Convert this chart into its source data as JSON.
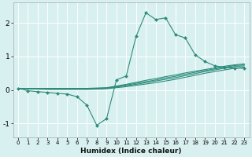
{
  "title": "",
  "xlabel": "Humidex (Indice chaleur)",
  "bg_color": "#d9f0f0",
  "grid_color": "#ffffff",
  "line_color": "#2d8b7a",
  "xlim": [
    -0.5,
    23.5
  ],
  "ylim": [
    -1.4,
    2.6
  ],
  "yticks": [
    -1,
    0,
    1,
    2
  ],
  "xticks": [
    0,
    1,
    2,
    3,
    4,
    5,
    6,
    7,
    8,
    9,
    10,
    11,
    12,
    13,
    14,
    15,
    16,
    17,
    18,
    19,
    20,
    21,
    22,
    23
  ],
  "lines": [
    {
      "x": [
        0,
        1,
        2,
        3,
        4,
        5,
        6,
        7,
        8,
        9,
        10,
        11,
        12,
        13,
        14,
        15,
        16,
        17,
        18,
        19,
        20,
        21,
        22,
        23
      ],
      "y": [
        0.05,
        -0.02,
        -0.05,
        -0.07,
        -0.1,
        -0.12,
        -0.2,
        -0.45,
        -1.05,
        -0.85,
        0.3,
        0.42,
        1.6,
        2.3,
        2.1,
        2.15,
        1.65,
        1.55,
        1.05,
        0.85,
        0.72,
        0.68,
        0.65,
        0.65
      ],
      "marker": "D",
      "markersize": 2.0
    },
    {
      "x": [
        0,
        1,
        2,
        3,
        4,
        5,
        6,
        7,
        8,
        9,
        10,
        11,
        12,
        13,
        14,
        15,
        16,
        17,
        18,
        19,
        20,
        21,
        22,
        23
      ],
      "y": [
        0.05,
        0.04,
        0.03,
        0.02,
        0.02,
        0.02,
        0.02,
        0.02,
        0.03,
        0.04,
        0.07,
        0.1,
        0.14,
        0.18,
        0.22,
        0.27,
        0.32,
        0.38,
        0.44,
        0.5,
        0.55,
        0.6,
        0.65,
        0.68
      ],
      "marker": null,
      "markersize": 0
    },
    {
      "x": [
        0,
        1,
        2,
        3,
        4,
        5,
        6,
        7,
        8,
        9,
        10,
        11,
        12,
        13,
        14,
        15,
        16,
        17,
        18,
        19,
        20,
        21,
        22,
        23
      ],
      "y": [
        0.05,
        0.04,
        0.04,
        0.03,
        0.03,
        0.03,
        0.03,
        0.03,
        0.04,
        0.05,
        0.09,
        0.13,
        0.17,
        0.22,
        0.27,
        0.32,
        0.37,
        0.43,
        0.49,
        0.55,
        0.6,
        0.65,
        0.7,
        0.72
      ],
      "marker": null,
      "markersize": 0
    },
    {
      "x": [
        0,
        1,
        2,
        3,
        4,
        5,
        6,
        7,
        8,
        9,
        10,
        11,
        12,
        13,
        14,
        15,
        16,
        17,
        18,
        19,
        20,
        21,
        22,
        23
      ],
      "y": [
        0.05,
        0.04,
        0.04,
        0.04,
        0.04,
        0.04,
        0.04,
        0.04,
        0.05,
        0.06,
        0.1,
        0.15,
        0.2,
        0.25,
        0.3,
        0.36,
        0.41,
        0.47,
        0.53,
        0.58,
        0.63,
        0.68,
        0.73,
        0.75
      ],
      "marker": null,
      "markersize": 0
    },
    {
      "x": [
        0,
        1,
        2,
        3,
        4,
        5,
        6,
        7,
        8,
        9,
        10,
        11,
        12,
        13,
        14,
        15,
        16,
        17,
        18,
        19,
        20,
        21,
        22,
        23
      ],
      "y": [
        0.05,
        0.05,
        0.05,
        0.05,
        0.05,
        0.05,
        0.05,
        0.05,
        0.06,
        0.07,
        0.12,
        0.17,
        0.23,
        0.29,
        0.34,
        0.4,
        0.45,
        0.51,
        0.56,
        0.61,
        0.66,
        0.71,
        0.75,
        0.78
      ],
      "marker": null,
      "markersize": 0
    }
  ]
}
